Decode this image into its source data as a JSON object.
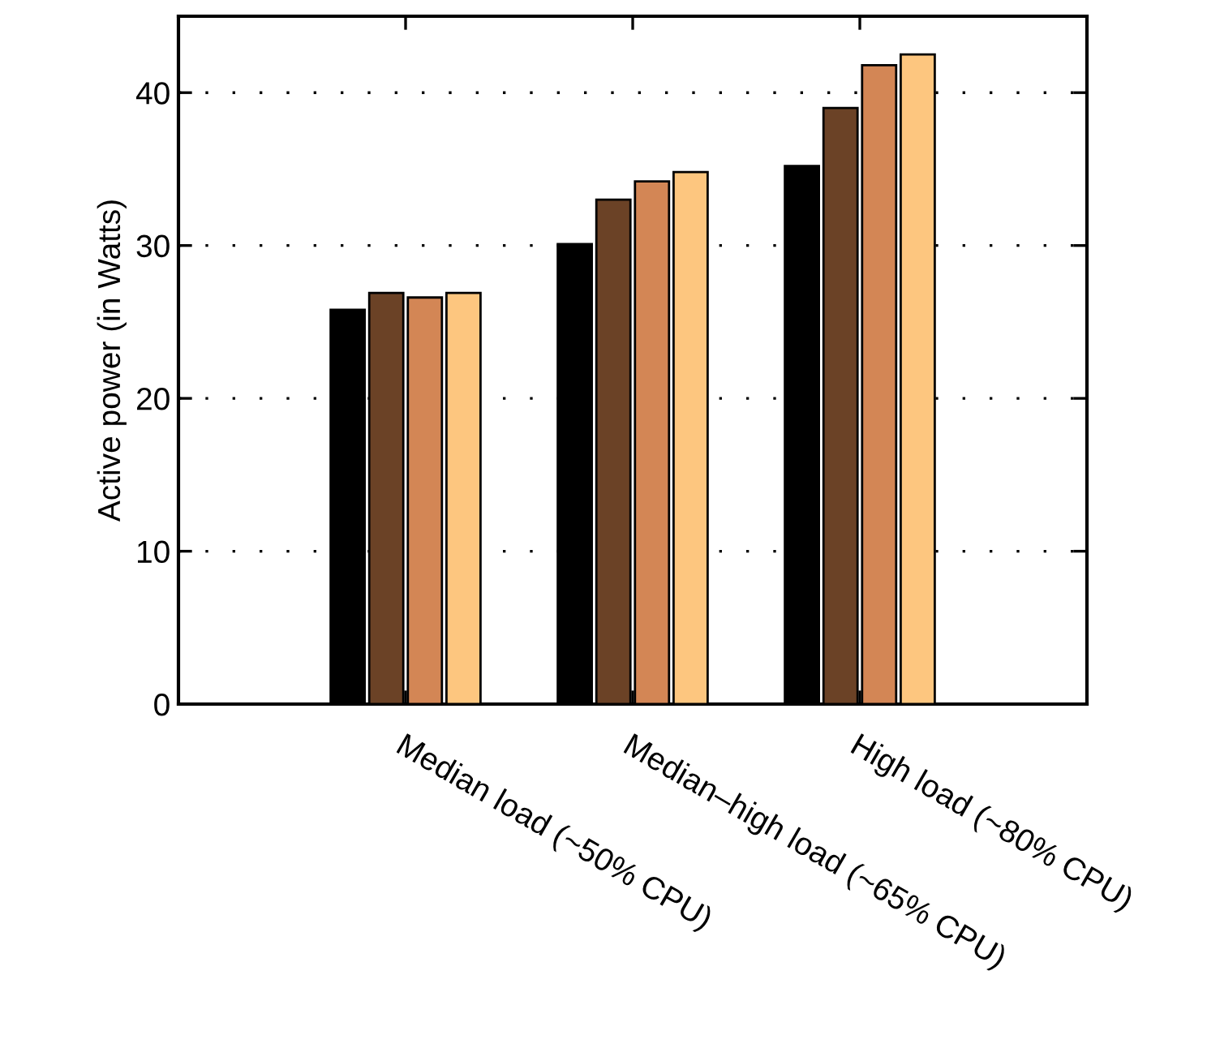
{
  "chart_data": {
    "type": "bar",
    "categories": [
      "Median load (~50% CPU)",
      "Median–high load (~65% CPU)",
      "High load (~80% CPU)"
    ],
    "series": [
      {
        "color": "#000000",
        "values": [
          25.8,
          30.1,
          35.2
        ]
      },
      {
        "color": "#6b4226",
        "values": [
          26.9,
          33.0,
          39.0
        ]
      },
      {
        "color": "#d38655",
        "values": [
          26.6,
          34.2,
          41.8
        ]
      },
      {
        "color": "#fdc67f",
        "values": [
          26.9,
          34.8,
          42.5
        ]
      }
    ],
    "ylabel": "Active power (in Watts)",
    "ylim": [
      0,
      45
    ],
    "yticks": [
      0,
      10,
      20,
      30,
      40
    ],
    "grid": "y",
    "line_style": "dotted",
    "legend": false
  }
}
